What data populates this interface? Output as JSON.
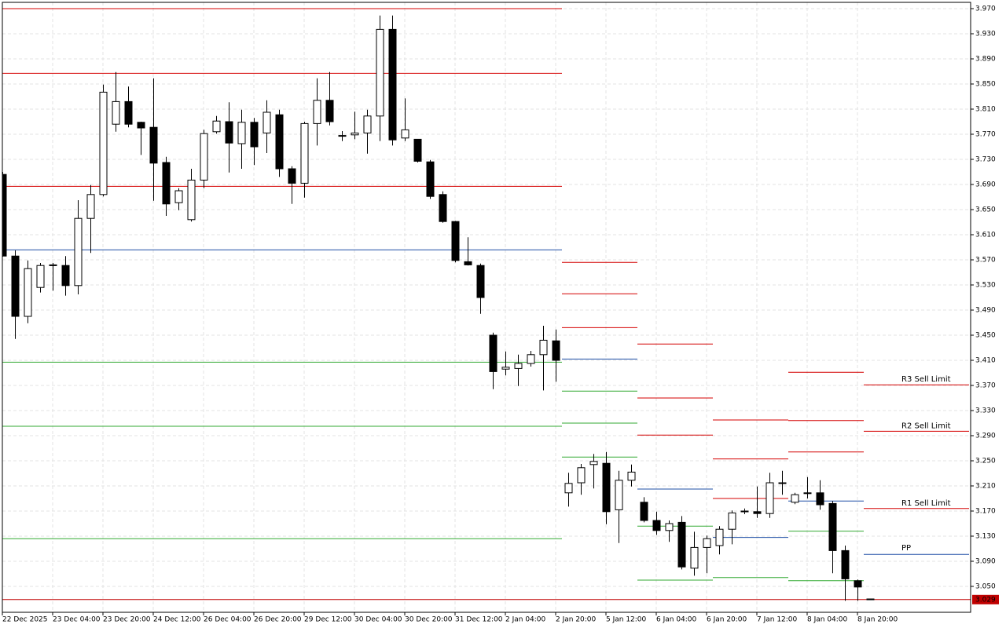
{
  "chart_data": {
    "type": "candlestick",
    "up_color": "#ffffff",
    "down_color": "#000000",
    "outline_color": "#000000",
    "grid": true,
    "ylim": [
      3.00875,
      3.98
    ],
    "yticks": [
      {
        "value": 3.97,
        "label": "3.970"
      },
      {
        "value": 3.93,
        "label": "3.930"
      },
      {
        "value": 3.89,
        "label": "3.890"
      },
      {
        "value": 3.85,
        "label": "3.850"
      },
      {
        "value": 3.81,
        "label": "3.810"
      },
      {
        "value": 3.77,
        "label": "3.770"
      },
      {
        "value": 3.73,
        "label": "3.730"
      },
      {
        "value": 3.69,
        "label": "3.690"
      },
      {
        "value": 3.65,
        "label": "3.650"
      },
      {
        "value": 3.61,
        "label": "3.610"
      },
      {
        "value": 3.57,
        "label": "3.570"
      },
      {
        "value": 3.53,
        "label": "3.530"
      },
      {
        "value": 3.49,
        "label": "3.490"
      },
      {
        "value": 3.45,
        "label": "3.450"
      },
      {
        "value": 3.41,
        "label": "3.410"
      },
      {
        "value": 3.37,
        "label": "3.370"
      },
      {
        "value": 3.33,
        "label": "3.330"
      },
      {
        "value": 3.29,
        "label": "3.290"
      },
      {
        "value": 3.25,
        "label": "3.250"
      },
      {
        "value": 3.21,
        "label": "3.210"
      },
      {
        "value": 3.17,
        "label": "3.170"
      },
      {
        "value": 3.13,
        "label": "3.130"
      },
      {
        "value": 3.09,
        "label": "3.090"
      },
      {
        "value": 3.05,
        "label": "3.050"
      }
    ],
    "categories": [
      "22 Dec 2025",
      null,
      null,
      null,
      "23 Dec 04:00",
      null,
      null,
      null,
      "23 Dec 20:00",
      null,
      null,
      null,
      "24 Dec 12:00",
      null,
      null,
      null,
      "26 Dec 04:00",
      null,
      null,
      null,
      "26 Dec 20:00",
      null,
      null,
      null,
      "29 Dec 12:00",
      null,
      null,
      null,
      "30 Dec 04:00",
      null,
      null,
      null,
      "30 Dec 20:00",
      null,
      null,
      null,
      "31 Dec 12:00",
      null,
      null,
      null,
      "2 Jan 04:00",
      null,
      null,
      null,
      "2 Jan 20:00",
      null,
      null,
      null,
      "5 Jan 12:00",
      null,
      null,
      null,
      "6 Jan 04:00",
      null,
      null,
      null,
      "6 Jan 20:00",
      null,
      null,
      null,
      "7 Jan 12:00",
      null,
      null,
      null,
      "8 Jan 04:00",
      null,
      null,
      null,
      "8 Jan 20:00",
      null
    ],
    "open": [
      3.706,
      3.576,
      3.48,
      3.526,
      3.561,
      3.561,
      3.529,
      3.636,
      3.674,
      3.786,
      3.822,
      3.789,
      3.781,
      3.725,
      3.661,
      3.634,
      3.697,
      3.774,
      3.79,
      3.755,
      3.789,
      3.772,
      3.801,
      3.715,
      3.692,
      3.787,
      3.824,
      3.768,
      3.769,
      3.772,
      3.799,
      3.937,
      3.764,
      3.762,
      3.726,
      3.674,
      3.631,
      3.567,
      3.561,
      3.45,
      3.396,
      3.397,
      3.405,
      3.419,
      3.441,
      3.199,
      3.215,
      3.244,
      3.246,
      3.172,
      3.219,
      3.184,
      3.155,
      3.139,
      3.152,
      3.079,
      3.112,
      3.115,
      3.141,
      3.169,
      3.169,
      3.166,
      3.214,
      3.184,
      3.198,
      3.199,
      3.182,
      3.107,
      3.059,
      3.03
    ],
    "high": [
      3.71,
      3.585,
      3.569,
      3.565,
      3.565,
      3.576,
      3.665,
      3.689,
      3.849,
      3.869,
      3.846,
      3.79,
      3.859,
      3.734,
      3.684,
      3.715,
      3.777,
      3.799,
      3.821,
      3.809,
      3.796,
      3.824,
      3.809,
      3.719,
      3.79,
      3.859,
      3.869,
      3.775,
      3.806,
      3.809,
      3.959,
      3.959,
      3.827,
      3.762,
      3.729,
      3.679,
      3.632,
      3.606,
      3.564,
      3.454,
      3.424,
      3.419,
      3.425,
      3.465,
      3.459,
      3.231,
      3.245,
      3.261,
      3.264,
      3.234,
      3.244,
      3.192,
      3.169,
      3.155,
      3.162,
      3.137,
      3.131,
      3.146,
      3.171,
      3.174,
      3.209,
      3.231,
      3.234,
      3.199,
      3.224,
      3.219,
      3.186,
      3.115,
      3.061,
      3.03
    ],
    "low": [
      3.575,
      3.444,
      3.469,
      3.518,
      3.521,
      3.513,
      3.515,
      3.581,
      3.671,
      3.774,
      3.781,
      3.737,
      3.664,
      3.64,
      3.649,
      3.631,
      3.684,
      3.771,
      3.709,
      3.715,
      3.721,
      3.74,
      3.702,
      3.659,
      3.669,
      3.752,
      3.784,
      3.759,
      3.762,
      3.739,
      3.759,
      3.752,
      3.759,
      3.725,
      3.667,
      3.629,
      3.566,
      3.561,
      3.484,
      3.364,
      3.386,
      3.369,
      3.4,
      3.362,
      3.376,
      3.177,
      3.196,
      3.206,
      3.149,
      3.119,
      3.209,
      3.152,
      3.132,
      3.121,
      3.077,
      3.067,
      3.071,
      3.101,
      3.117,
      3.165,
      3.159,
      3.159,
      3.196,
      3.181,
      3.19,
      3.172,
      3.071,
      3.027,
      3.027,
      3.029
    ],
    "close": [
      3.576,
      3.48,
      3.556,
      3.561,
      3.562,
      3.529,
      3.636,
      3.674,
      3.837,
      3.822,
      3.786,
      3.78,
      3.724,
      3.659,
      3.68,
      3.697,
      3.771,
      3.791,
      3.756,
      3.789,
      3.75,
      3.805,
      3.715,
      3.692,
      3.787,
      3.824,
      3.79,
      3.767,
      3.772,
      3.799,
      3.937,
      3.761,
      3.777,
      3.727,
      3.671,
      3.631,
      3.569,
      3.562,
      3.51,
      3.392,
      3.399,
      3.405,
      3.419,
      3.442,
      3.41,
      3.214,
      3.239,
      3.249,
      3.169,
      3.219,
      3.232,
      3.155,
      3.139,
      3.15,
      3.081,
      3.112,
      3.126,
      3.141,
      3.167,
      3.17,
      3.166,
      3.215,
      3.215,
      3.196,
      3.199,
      3.18,
      3.107,
      3.062,
      3.049,
      3.029
    ],
    "level_colors": {
      "resistance": "#d40000",
      "pivot": "#1f4fa6",
      "support": "#33aa33"
    },
    "levels": [
      {
        "from": 0,
        "to": 44,
        "resistance": [
          3.97,
          3.867,
          3.687
        ],
        "pivot": 3.586,
        "support": [
          3.407,
          3.305,
          3.126
        ]
      },
      {
        "from": 45,
        "to": 50,
        "resistance": [
          3.566,
          3.516,
          3.462
        ],
        "pivot": 3.412,
        "support": [
          3.361,
          3.31,
          3.256
        ]
      },
      {
        "from": 51,
        "to": 56,
        "resistance": [
          3.436,
          3.35,
          3.291
        ],
        "pivot": 3.205,
        "support": [
          3.146,
          3.06
        ]
      },
      {
        "from": 57,
        "to": 62,
        "resistance": [
          3.315,
          3.253,
          3.19
        ],
        "pivot": 3.128,
        "support": [
          3.064
        ]
      },
      {
        "from": 63,
        "to": 68,
        "resistance": [
          3.391,
          3.314,
          3.264
        ],
        "pivot": 3.186,
        "support": [
          3.138,
          3.059
        ]
      },
      {
        "from": 69,
        "to": 69,
        "resistance": [
          3.371,
          3.297,
          3.174
        ],
        "pivot": 3.101,
        "support": [],
        "resistance_labels": [
          "R3 Sell Limit",
          "R2 Sell Limit",
          "R1 Sell Limit"
        ],
        "pivot_label": "PP"
      }
    ],
    "last_price": 3.029,
    "last_price_color": "#c00000"
  }
}
